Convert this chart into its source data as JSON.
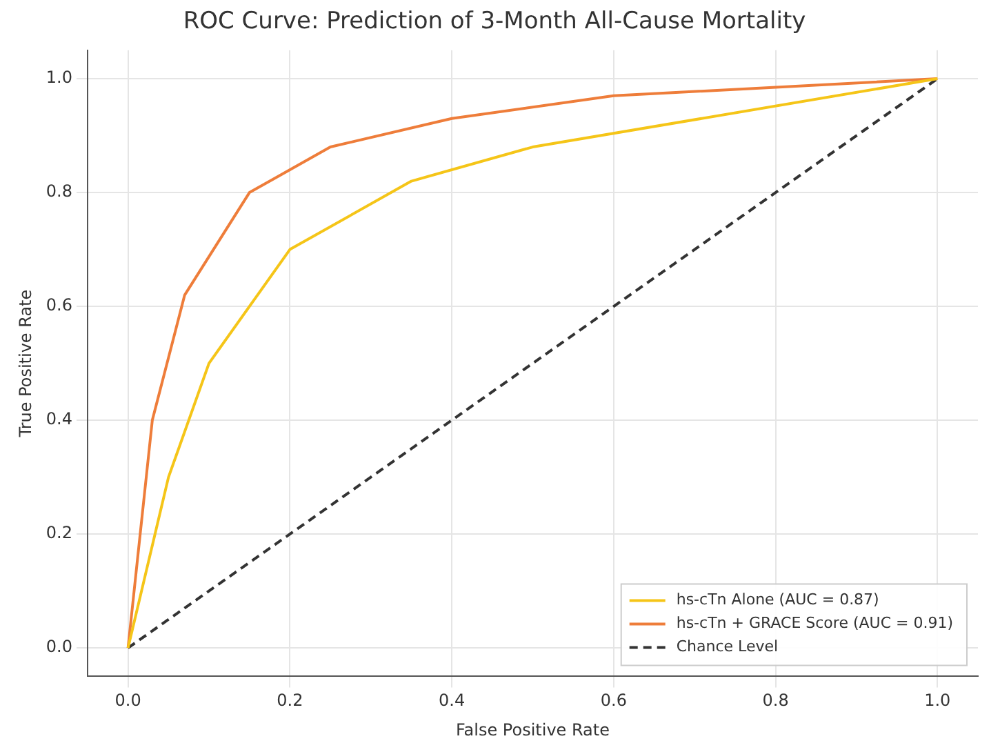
{
  "chart_data": {
    "type": "line",
    "title": "ROC Curve: Prediction of 3-Month All-Cause Mortality",
    "xlabel": "False Positive Rate",
    "ylabel": "True Positive Rate",
    "xlim": [
      -0.05,
      1.05
    ],
    "ylim": [
      -0.05,
      1.05
    ],
    "xticks": [
      {
        "value": 0,
        "label": "0.0"
      },
      {
        "value": 0.2,
        "label": "0.2"
      },
      {
        "value": 0.4,
        "label": "0.4"
      },
      {
        "value": 0.6,
        "label": "0.6"
      },
      {
        "value": 0.8,
        "label": "0.8"
      },
      {
        "value": 1,
        "label": "1.0"
      }
    ],
    "yticks": [
      {
        "value": 0,
        "label": "0.0"
      },
      {
        "value": 0.2,
        "label": "0.2"
      },
      {
        "value": 0.4,
        "label": "0.4"
      },
      {
        "value": 0.6,
        "label": "0.6"
      },
      {
        "value": 0.8,
        "label": "0.8"
      },
      {
        "value": 1,
        "label": "1.0"
      }
    ],
    "grid": true,
    "legend": "bottom right",
    "marker": "none",
    "series": [
      {
        "name": "hs-cTn Alone (AUC = 0.87)",
        "color": "#f5c518",
        "x": [
          0,
          0.05,
          0.1,
          0.2,
          0.35,
          0.5,
          1
        ],
        "values": [
          0,
          0.3,
          0.5,
          0.7,
          0.82,
          0.88,
          1
        ]
      },
      {
        "name": "hs-cTn + GRACE Score (AUC = 0.91)",
        "color": "#ee7d3a",
        "x": [
          0,
          0.03,
          0.07,
          0.15,
          0.25,
          0.4,
          0.6,
          1
        ],
        "values": [
          0,
          0.4,
          0.62,
          0.8,
          0.88,
          0.93,
          0.97,
          1
        ]
      },
      {
        "name": "Chance Level",
        "color": "#333333",
        "line_style": "dashed",
        "x": [
          0,
          1
        ],
        "values": [
          0,
          1
        ]
      }
    ]
  }
}
